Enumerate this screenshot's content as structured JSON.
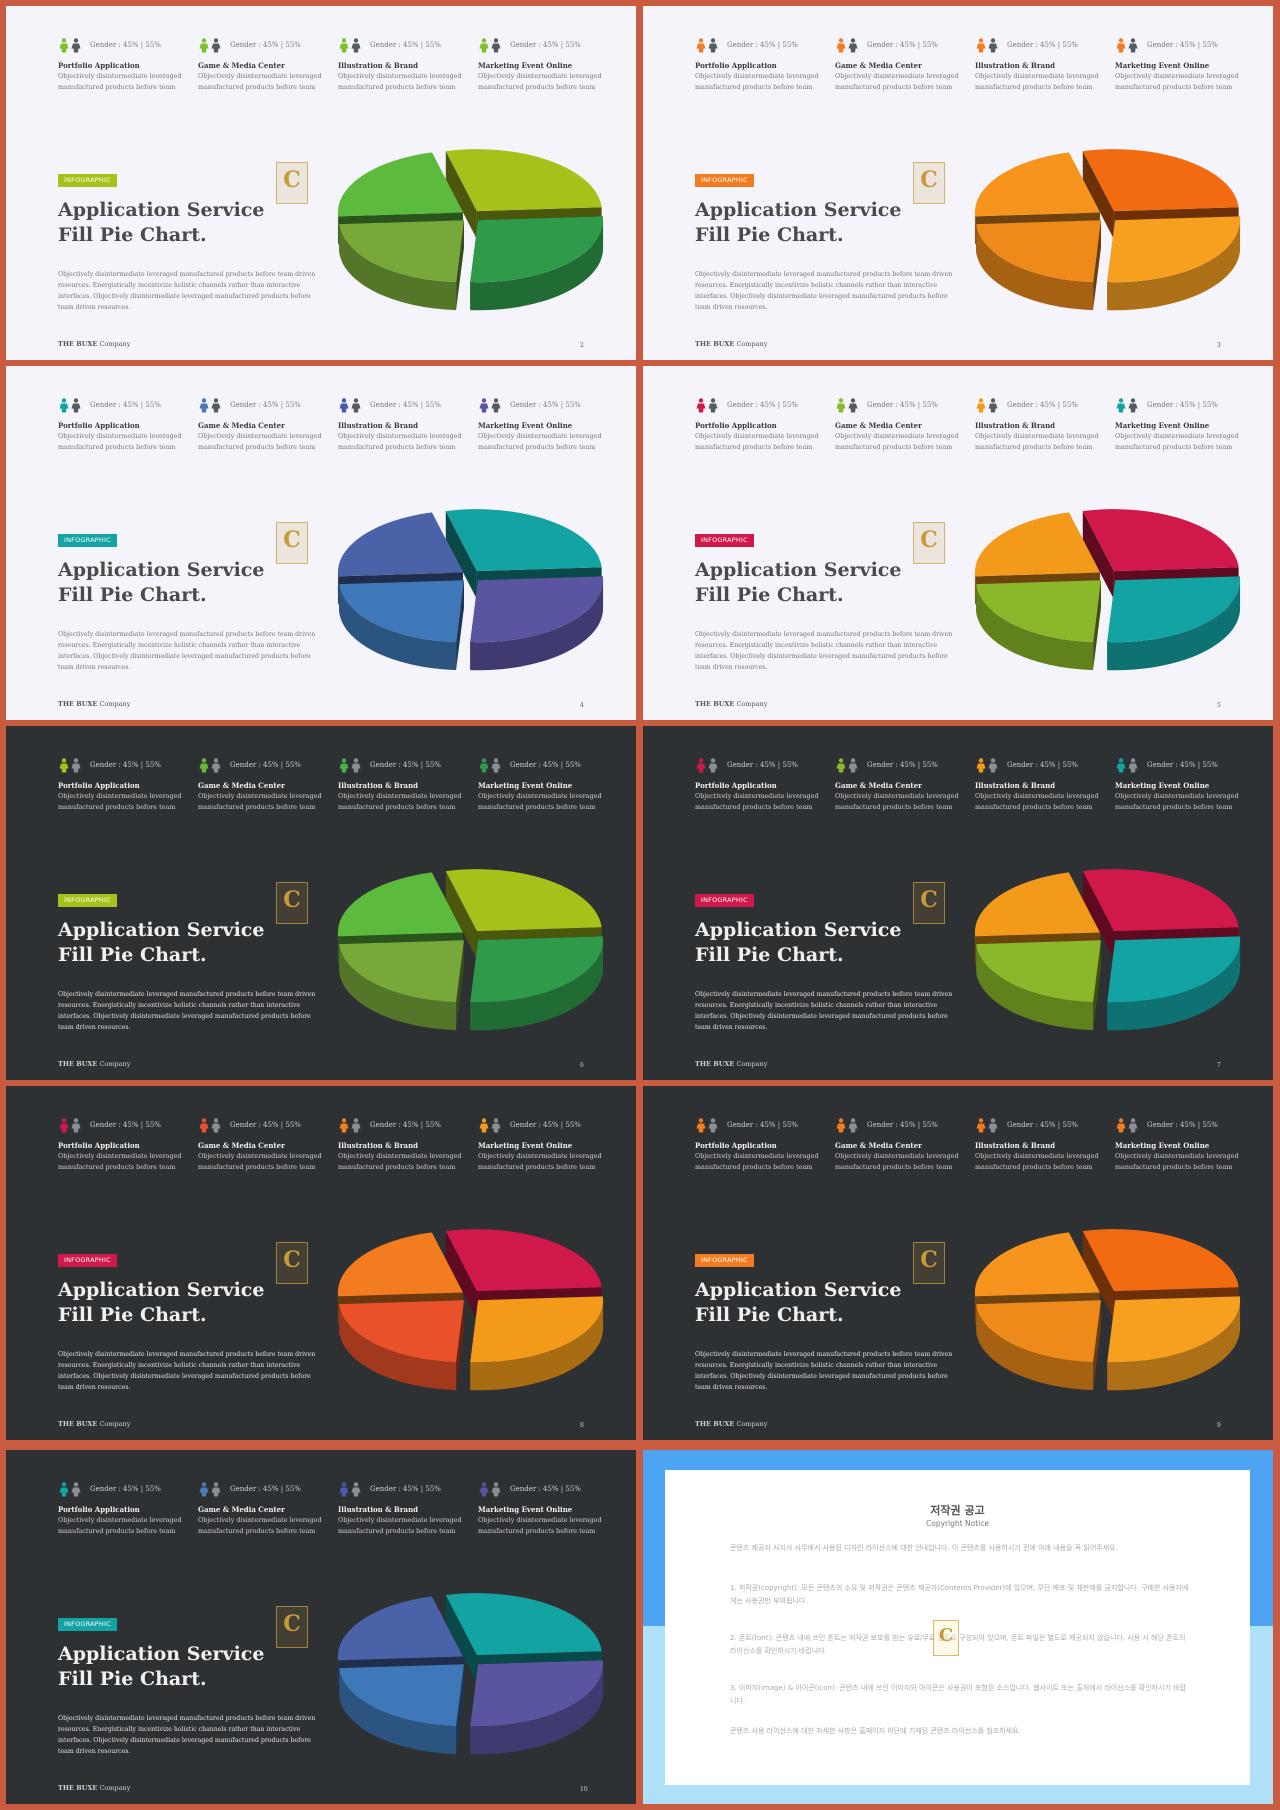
{
  "common": {
    "badge": "INFOGRAPHIC",
    "title_line1": "Application Service",
    "title_line2": "Fill Pie Chart.",
    "body": "Objectively disintermediate leveraged manufactured products before team driven resources. Energistically incentivize holistic channels rather than interactive interfaces. Objectively disintermediate leveraged manufactured products before team driven resources.",
    "footer_brand": "THE BUXE",
    "footer_company": "Company",
    "gender_label": "Gender : 45% | 55%",
    "stats": [
      {
        "title": "Portfolio Application",
        "desc": "Objectively disintermediate leveraged manufactured products before team"
      },
      {
        "title": "Game & Media Center",
        "desc": "Objectively disintermediate leveraged manufactured products before team"
      },
      {
        "title": "Illustration & Brand",
        "desc": "Objectively disintermediate leveraged manufactured products before team"
      },
      {
        "title": "Marketing Event Online",
        "desc": "Objectively disintermediate leveraged manufactured products before team"
      }
    ],
    "pie_slices": [
      {
        "label": "top-left",
        "share": 0.22
      },
      {
        "label": "top-right",
        "share": 0.28
      },
      {
        "label": "bottom",
        "share": 0.27
      },
      {
        "label": "left",
        "share": 0.23
      }
    ],
    "logo_letter": "C"
  },
  "slides": [
    {
      "page": "2",
      "theme": "light",
      "badge_color": "#a6c21a",
      "stat_colors": [
        "#7cc02a",
        "#7cc02a",
        "#7cc02a",
        "#7cc02a"
      ],
      "slice_colors": [
        "#5cba3c",
        "#a6c21a",
        "#2f9a4a",
        "#78a83a"
      ]
    },
    {
      "page": "3",
      "theme": "light",
      "badge_color": "#f47c20",
      "stat_colors": [
        "#f47c20",
        "#f47c20",
        "#f47c20",
        "#f47c20"
      ],
      "slice_colors": [
        "#f7941d",
        "#f36b10",
        "#f7a020",
        "#ee8a1a"
      ]
    },
    {
      "page": "4",
      "theme": "light",
      "badge_color": "#14a3a3",
      "stat_colors": [
        "#14a3a3",
        "#4a7ab8",
        "#4a5aa8",
        "#5a55a0"
      ],
      "slice_colors": [
        "#4a63a8",
        "#14a3a3",
        "#5a55a0",
        "#3f78b8"
      ]
    },
    {
      "page": "5",
      "theme": "light",
      "badge_color": "#d0184a",
      "stat_colors": [
        "#d0184a",
        "#8ab82a",
        "#f39a1a",
        "#14a3a3"
      ],
      "slice_colors": [
        "#f39a1a",
        "#d0184a",
        "#14a3a3",
        "#8ab82a"
      ]
    },
    {
      "page": "6",
      "theme": "dark",
      "badge_color": "#a6c21a",
      "stat_colors": [
        "#a6c21a",
        "#6ab83a",
        "#4ab04a",
        "#2f9a4a"
      ],
      "slice_colors": [
        "#5cba3c",
        "#a6c21a",
        "#2f9a4a",
        "#78a83a"
      ]
    },
    {
      "page": "7",
      "theme": "dark",
      "badge_color": "#d0184a",
      "stat_colors": [
        "#d0184a",
        "#8ab82a",
        "#f39a1a",
        "#14a3a3"
      ],
      "slice_colors": [
        "#f39a1a",
        "#d0184a",
        "#14a3a3",
        "#8ab82a"
      ]
    },
    {
      "page": "8",
      "theme": "dark",
      "badge_color": "#d0184a",
      "stat_colors": [
        "#d0184a",
        "#e8512a",
        "#f47c20",
        "#f39a1a"
      ],
      "slice_colors": [
        "#f47c20",
        "#d0184a",
        "#f39a1a",
        "#e8512a"
      ]
    },
    {
      "page": "9",
      "theme": "dark",
      "badge_color": "#f47c20",
      "stat_colors": [
        "#f47c20",
        "#f47c20",
        "#f47c20",
        "#f47c20"
      ],
      "slice_colors": [
        "#f7941d",
        "#f36b10",
        "#f7a020",
        "#ee8a1a"
      ]
    },
    {
      "page": "10",
      "theme": "dark",
      "badge_color": "#14a3a3",
      "stat_colors": [
        "#14a3a3",
        "#4a7ab8",
        "#4a5aa8",
        "#5a55a0"
      ],
      "slice_colors": [
        "#4a63a8",
        "#14a3a3",
        "#5a55a0",
        "#3f78b8"
      ]
    }
  ],
  "copyright": {
    "title": "저작권 공고",
    "subtitle": "Copyright Notice",
    "intro": "콘텐츠 제공자 사지샤 사무에서 사용된 디자인 라이선스에 대한 안내입니다. 이 콘텐츠를 사용하시기 전에 아래 내용을 꼭 읽어주세요.",
    "sec1": "1. 저작권(copyright): 모든 콘텐츠의 소유 및 저작권은 콘텐츠 제공자(Contents Provider)에 있으며, 무단 배포 및 재판매를 금지합니다. 구매한 사용자에게는 사용권만 부여됩니다.",
    "sec2": "2. 폰트(font): 콘텐츠 내에 쓰인 폰트는 저작권 보호를 받는 유료/무료 폰트로 구성되어 있으며, 폰트 파일은 별도로 제공되지 않습니다. 사용 시 해당 폰트의 라이선스를 확인하시기 바랍니다.",
    "sec3": "3. 이미지(image) & 아이콘(icon): 콘텐츠 내에 쓰인 이미지와 아이콘은 사용권이 포함된 소스입니다. 웹사이트 또는 출처에서 라이선스를 확인하시기 바랍니다.",
    "outro": "콘텐츠 사용 라이선스에 대한 자세한 사항은 홈페이지 하단에 기재된 콘텐츠 라이선스를 참조하세요."
  }
}
